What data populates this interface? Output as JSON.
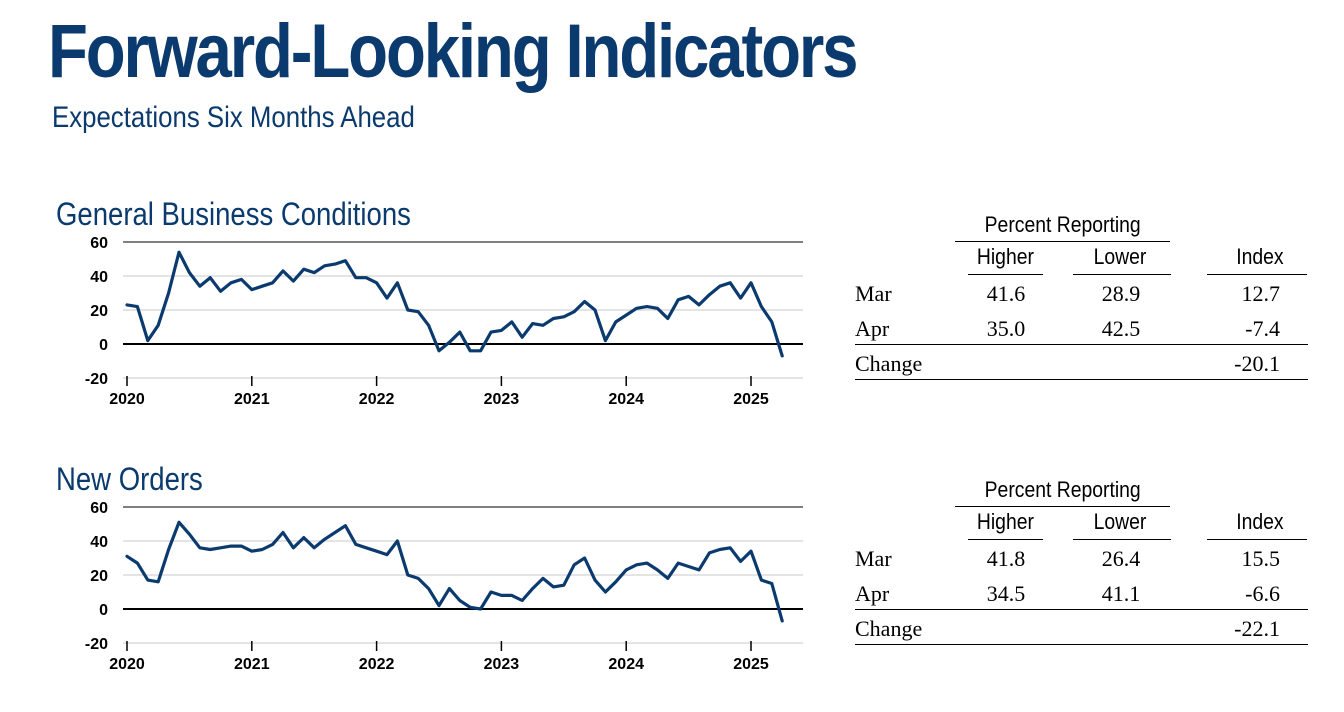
{
  "header": {
    "title": "Forward-Looking Indicators",
    "subtitle": "Expectations Six Months Ahead"
  },
  "colors": {
    "brand": "#0b3a6e",
    "line": "#0b3a6e",
    "grid": "#c8c8c8",
    "axis": "#000000"
  },
  "panels": [
    {
      "title": "General Business Conditions",
      "table": {
        "group_label": "Percent Reporting",
        "columns": [
          "Higher",
          "Lower",
          "Index"
        ],
        "rows": [
          {
            "label": "Mar",
            "higher": "41.6",
            "lower": "28.9",
            "index": "12.7"
          },
          {
            "label": "Apr",
            "higher": "35.0",
            "lower": "42.5",
            "index": "-7.4"
          }
        ],
        "change_label": "Change",
        "change_value": "-20.1"
      }
    },
    {
      "title": "New Orders",
      "table": {
        "group_label": "Percent Reporting",
        "columns": [
          "Higher",
          "Lower",
          "Index"
        ],
        "rows": [
          {
            "label": "Mar",
            "higher": "41.8",
            "lower": "26.4",
            "index": "15.5"
          },
          {
            "label": "Apr",
            "higher": "34.5",
            "lower": "41.1",
            "index": "-6.6"
          }
        ],
        "change_label": "Change",
        "change_value": "-22.1"
      }
    }
  ],
  "chart_data": [
    {
      "type": "line",
      "title": "General Business Conditions",
      "xlabel": "",
      "ylabel": "",
      "ylim": [
        -20,
        60
      ],
      "yticks": [
        -20,
        0,
        20,
        40,
        60
      ],
      "xticks": [
        "2020",
        "2021",
        "2022",
        "2023",
        "2024",
        "2025"
      ],
      "x_start": "2020-01",
      "frequency": "monthly",
      "grid": true,
      "series": [
        {
          "values": [
            23,
            22,
            2,
            11,
            30,
            54,
            42,
            34,
            39,
            31,
            36,
            38,
            32,
            34,
            36,
            43,
            37,
            44,
            42,
            46,
            47,
            49,
            39,
            39,
            36,
            27,
            36,
            20,
            19,
            11,
            -4,
            1,
            7,
            -4,
            -4,
            7,
            8,
            13,
            4,
            12,
            11,
            15,
            16,
            19,
            25,
            20,
            2,
            13,
            17,
            21,
            22,
            21,
            15,
            26,
            28,
            23,
            29,
            34,
            36,
            27,
            36,
            22,
            13,
            -7
          ]
        }
      ]
    },
    {
      "type": "line",
      "title": "New Orders",
      "xlabel": "",
      "ylabel": "",
      "ylim": [
        -20,
        60
      ],
      "yticks": [
        -20,
        0,
        20,
        40,
        60
      ],
      "xticks": [
        "2020",
        "2021",
        "2022",
        "2023",
        "2024",
        "2025"
      ],
      "x_start": "2020-01",
      "frequency": "monthly",
      "grid": true,
      "series": [
        {
          "values": [
            31,
            27,
            17,
            16,
            35,
            51,
            44,
            36,
            35,
            36,
            37,
            37,
            34,
            35,
            38,
            45,
            36,
            42,
            36,
            41,
            45,
            49,
            38,
            36,
            34,
            32,
            40,
            20,
            18,
            12,
            2,
            12,
            5,
            1,
            0,
            10,
            8,
            8,
            5,
            12,
            18,
            13,
            14,
            26,
            30,
            17,
            10,
            16,
            23,
            26,
            27,
            23,
            18,
            27,
            25,
            23,
            33,
            35,
            36,
            28,
            34,
            17,
            15,
            -7
          ]
        }
      ]
    }
  ]
}
